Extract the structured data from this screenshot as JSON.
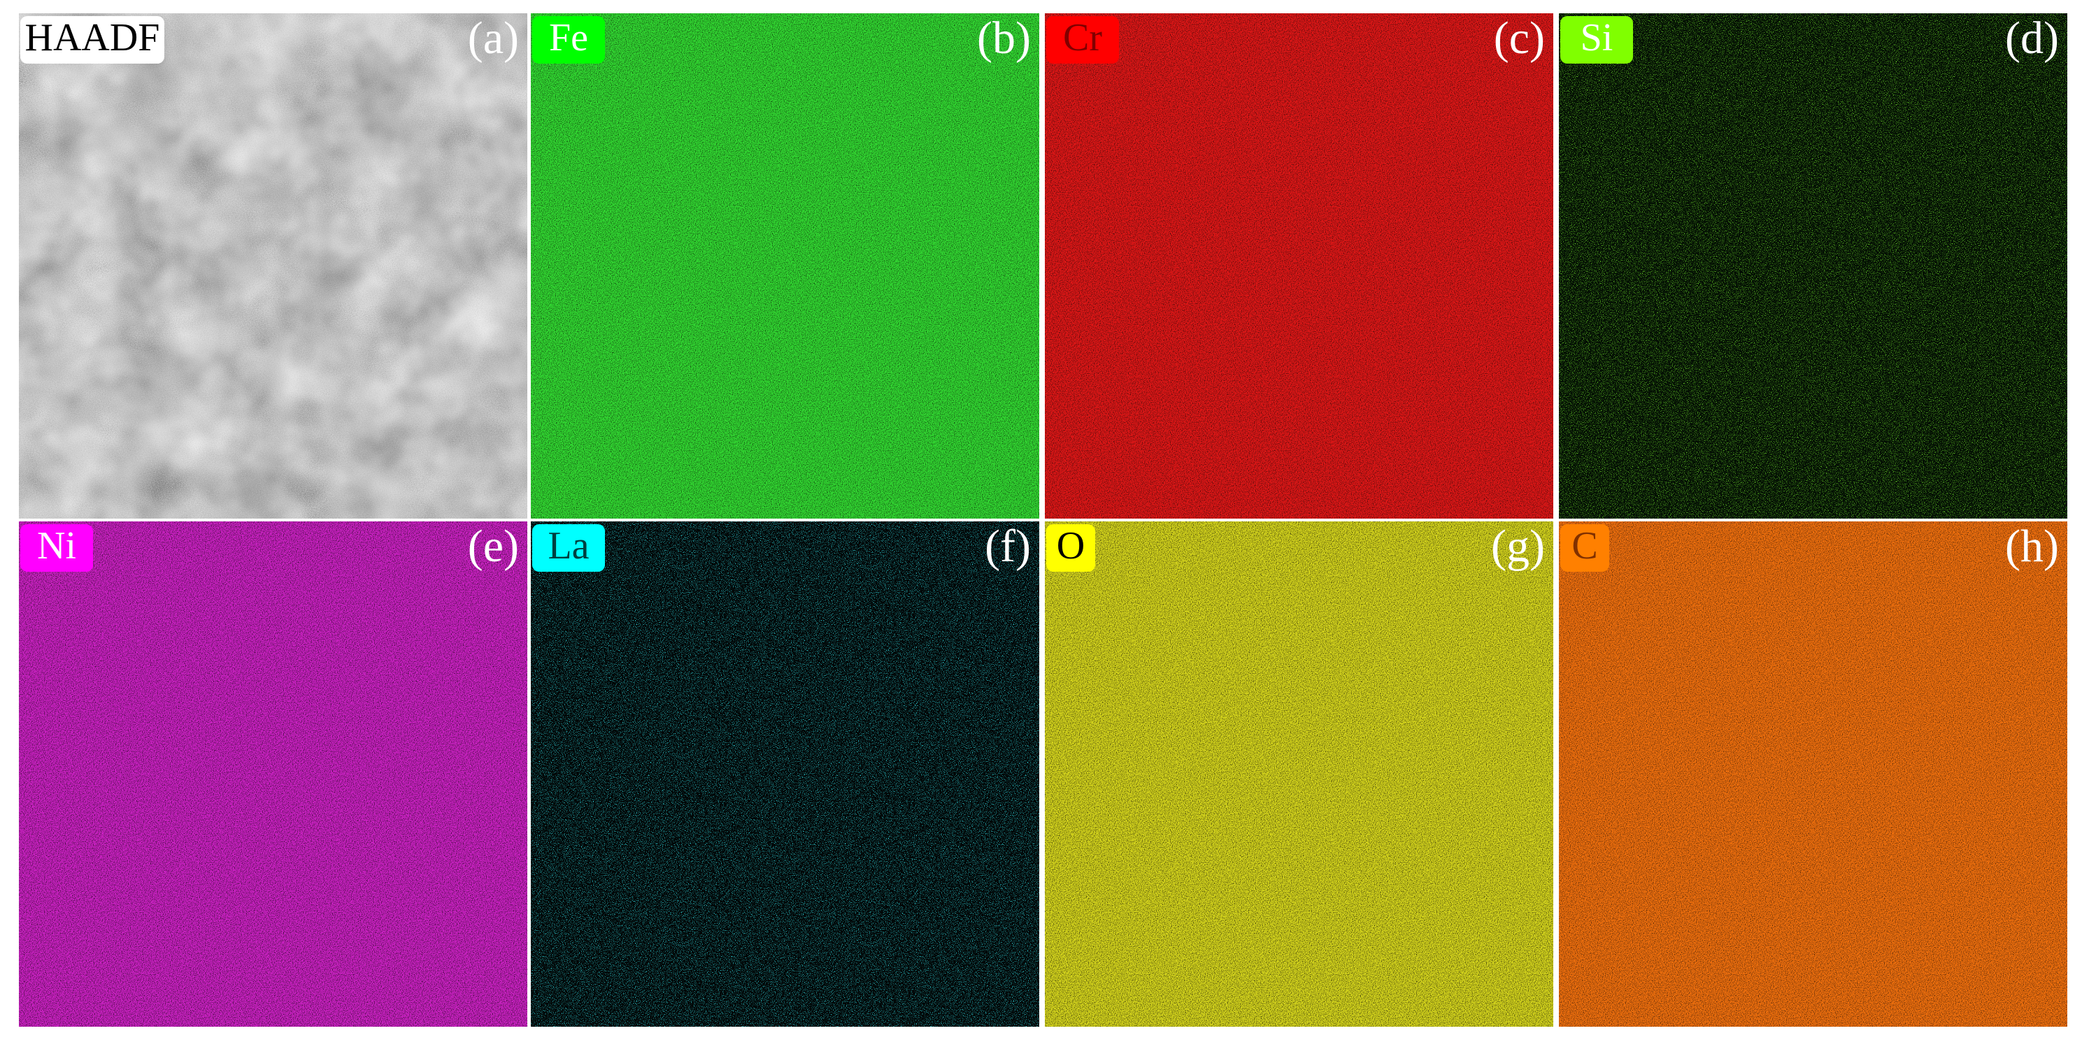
{
  "panels": [
    {
      "label": "HAADF",
      "letter": "(a)"
    },
    {
      "label": "Fe",
      "letter": "(b)"
    },
    {
      "label": "Cr",
      "letter": "(c)"
    },
    {
      "label": "Si",
      "letter": "(d)"
    },
    {
      "label": "Ni",
      "letter": "(e)"
    },
    {
      "label": "La",
      "letter": "(f)"
    },
    {
      "label": "O",
      "letter": "(g)"
    },
    {
      "label": "C",
      "letter": "(h)"
    }
  ]
}
